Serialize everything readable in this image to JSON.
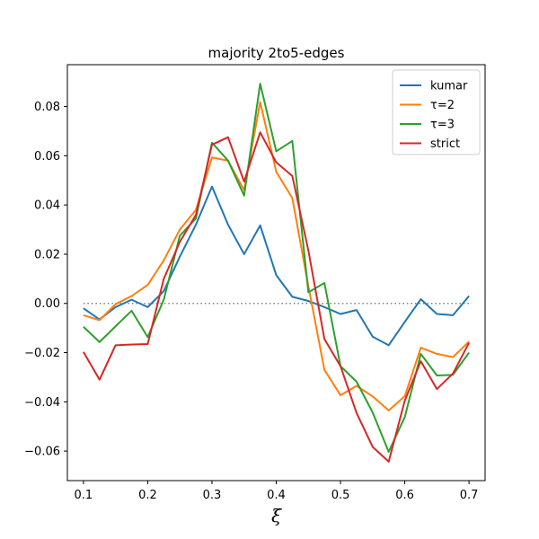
{
  "chart_data": {
    "type": "line",
    "title": "majority 2to5-edges",
    "xlabel": "ξ",
    "ylabel": "",
    "xlim": [
      0.075,
      0.725
    ],
    "ylim": [
      -0.072,
      0.097
    ],
    "xticks": [
      0.1,
      0.2,
      0.3,
      0.4,
      0.5,
      0.6,
      0.7
    ],
    "xtick_labels": [
      "0.1",
      "0.2",
      "0.3",
      "0.4",
      "0.5",
      "0.6",
      "0.7"
    ],
    "yticks": [
      -0.06,
      -0.04,
      -0.02,
      0.0,
      0.02,
      0.04,
      0.06,
      0.08
    ],
    "ytick_labels": [
      "−0.06",
      "−0.04",
      "−0.02",
      "0.00",
      "0.02",
      "0.04",
      "0.06",
      "0.08"
    ],
    "grid": false,
    "legend_position": "top-right",
    "reference_line": {
      "y": 0.0,
      "x_from": 0.1,
      "x_to": 0.7,
      "style": "dotted",
      "color": "#808080"
    },
    "x": [
      0.1,
      0.125,
      0.15,
      0.175,
      0.2,
      0.225,
      0.25,
      0.275,
      0.3,
      0.325,
      0.35,
      0.375,
      0.4,
      0.425,
      0.45,
      0.475,
      0.5,
      0.525,
      0.55,
      0.575,
      0.6,
      0.625,
      0.65,
      0.675,
      0.7
    ],
    "series": [
      {
        "name": "kumar",
        "color": "#1f77b4",
        "values": [
          -0.002,
          -0.0065,
          -0.0015,
          0.0015,
          -0.0015,
          0.005,
          0.019,
          0.032,
          0.0475,
          0.032,
          0.02,
          0.0317,
          0.0115,
          0.0027,
          0.001,
          -0.0015,
          -0.0043,
          -0.0027,
          -0.0135,
          -0.017,
          -0.0075,
          0.0017,
          -0.0043,
          -0.0048,
          0.003
        ]
      },
      {
        "name": "τ=2",
        "color": "#ff7f0e",
        "values": [
          -0.0048,
          -0.0068,
          -0.0003,
          0.003,
          0.0075,
          0.0175,
          0.03,
          0.038,
          0.0593,
          0.058,
          0.046,
          0.0818,
          0.0535,
          0.0428,
          0.007,
          -0.027,
          -0.0373,
          -0.0335,
          -0.0378,
          -0.0435,
          -0.0377,
          -0.018,
          -0.0205,
          -0.0218,
          -0.0155
        ]
      },
      {
        "name": "τ=3",
        "color": "#2ca02c",
        "values": [
          -0.0095,
          -0.0157,
          -0.0093,
          -0.003,
          -0.0137,
          0.0015,
          0.0275,
          0.0345,
          0.0653,
          0.058,
          0.0438,
          0.0893,
          0.0618,
          0.066,
          0.0045,
          0.0083,
          -0.0255,
          -0.0318,
          -0.0443,
          -0.0603,
          -0.0462,
          -0.0205,
          -0.0293,
          -0.029,
          -0.02
        ]
      },
      {
        "name": "strict",
        "color": "#d62728",
        "values": [
          -0.0197,
          -0.031,
          -0.017,
          -0.0167,
          -0.0165,
          0.01,
          0.025,
          0.036,
          0.0645,
          0.0675,
          0.0495,
          0.0695,
          0.0573,
          0.0518,
          0.0215,
          -0.0145,
          -0.0255,
          -0.0445,
          -0.0583,
          -0.0643,
          -0.0395,
          -0.0235,
          -0.0348,
          -0.0285,
          -0.016
        ]
      }
    ]
  }
}
